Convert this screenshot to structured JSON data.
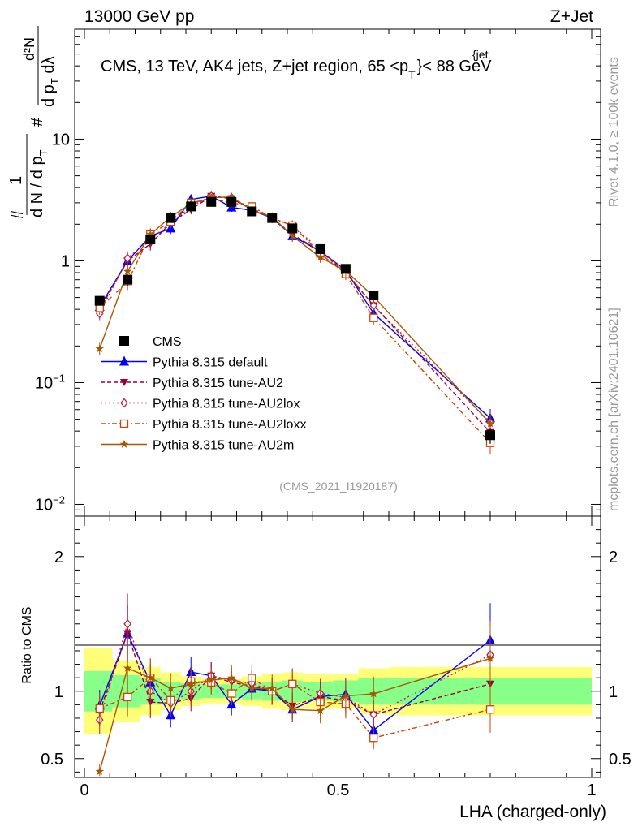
{
  "header": {
    "left": "13000 GeV pp",
    "right": "Z+Jet"
  },
  "chart_data": {
    "type": "line",
    "title": "CMS, 13 TeV, AK4 jets, Z+jet region, 65 <p_T^{jet}< 88 GeV",
    "title_parts": {
      "main": "CMS, 13 TeV, AK4 jets, Z+jet region, 65 <p",
      "sub": "T",
      "sup": "{jet",
      "tail": "}< 88 GeV"
    },
    "xlabel": "LHA (charged-only)",
    "ylabel_parts": {
      "n1": "#",
      "one": "1",
      "den": "d N / d p",
      "den_sub": "T",
      "n2": "#",
      "num2": "d²N",
      "den2": "d p",
      "den2_sub": "T",
      "den2_tail": " dλ"
    },
    "ratio_ylabel": "Ratio to CMS",
    "xlim": [
      0,
      1
    ],
    "ylim": [
      0.008,
      80
    ],
    "ratio_ylim": [
      0.36,
      2.3
    ],
    "yscale": "log",
    "analysis_id": "(CMS_2021_I1920187)",
    "side_label_rivet": "Rivet 4.1.0, ≥ 100k events",
    "side_label_mcplots": "mcplots.cern.ch [arXiv:2401.10621]",
    "x_ticks": [
      {
        "v": 0,
        "label": "0"
      },
      {
        "v": 0.5,
        "label": "0.5"
      },
      {
        "v": 1,
        "label": "1"
      }
    ],
    "y_ticks": [
      {
        "v": 0.01,
        "base": "10",
        "exp": "−2"
      },
      {
        "v": 0.1,
        "base": "10",
        "exp": "−1"
      },
      {
        "v": 1,
        "base": "1",
        "exp": ""
      },
      {
        "v": 10,
        "base": "10",
        "exp": ""
      }
    ],
    "ratio_ticks": [
      {
        "v": 0.5,
        "label": "0.5"
      },
      {
        "v": 1,
        "label": "1"
      },
      {
        "v": 2,
        "label": "2"
      }
    ],
    "x": [
      0.03,
      0.085,
      0.13,
      0.17,
      0.21,
      0.25,
      0.29,
      0.33,
      0.37,
      0.41,
      0.465,
      0.515,
      0.57,
      0.8
    ],
    "bin_edges": [
      0,
      0.055,
      0.11,
      0.15,
      0.19,
      0.23,
      0.27,
      0.31,
      0.35,
      0.39,
      0.43,
      0.49,
      0.54,
      0.6,
      1.0
    ],
    "data": {
      "name": "CMS",
      "values": [
        0.47,
        0.7,
        1.5,
        2.25,
        2.8,
        3.05,
        3.05,
        2.55,
        2.25,
        1.85,
        1.25,
        0.86,
        0.52,
        0.037
      ],
      "rel_err": [
        0.08,
        0.1,
        0.08,
        0.06,
        0.05,
        0.04,
        0.04,
        0.04,
        0.05,
        0.06,
        0.06,
        0.07,
        0.08,
        0.15
      ],
      "band_inner": [
        0.15,
        0.12,
        0.1,
        0.07,
        0.06,
        0.05,
        0.05,
        0.06,
        0.07,
        0.08,
        0.07,
        0.08,
        0.1,
        0.1
      ],
      "band_outer": [
        0.32,
        0.23,
        0.18,
        0.14,
        0.11,
        0.09,
        0.09,
        0.11,
        0.13,
        0.14,
        0.13,
        0.13,
        0.17,
        0.18
      ]
    },
    "series": [
      {
        "name": "Pythia 8.315 default",
        "color": "#0000ff",
        "dash": "",
        "marker": "triangle-up",
        "values": [
          0.42,
          1.0,
          1.6,
          1.85,
          3.2,
          3.4,
          2.75,
          2.6,
          2.25,
          1.6,
          1.2,
          0.84,
          0.37,
          0.051
        ]
      },
      {
        "name": "Pythia 8.315 tune-AU2",
        "color": "#990033",
        "dash": "5,3",
        "marker": "triangle-down",
        "values": [
          0.4,
          1.0,
          1.38,
          2.05,
          2.65,
          3.4,
          3.25,
          2.65,
          2.25,
          1.65,
          1.2,
          0.8,
          0.43,
          0.039
        ]
      },
      {
        "name": "Pythia 8.315 tune-AU2lox",
        "color": "#bb2244",
        "dash": "2,3",
        "marker": "diamond-open",
        "values": [
          0.37,
          1.05,
          1.5,
          2.05,
          2.8,
          3.4,
          3.3,
          2.7,
          2.25,
          1.95,
          1.23,
          0.82,
          0.43,
          0.047
        ]
      },
      {
        "name": "Pythia 8.315 tune-AU2loxx",
        "color": "#cc4400",
        "dash": "6,3,2,3",
        "marker": "square-open",
        "values": [
          0.41,
          0.67,
          1.65,
          2.1,
          3.0,
          3.25,
          3.0,
          2.8,
          2.25,
          1.95,
          1.15,
          0.78,
          0.34,
          0.032
        ]
      },
      {
        "name": "Pythia 8.315 tune-AU2m",
        "color": "#aa5500",
        "dash": "",
        "marker": "star",
        "values": [
          0.19,
          0.82,
          1.65,
          2.3,
          2.95,
          3.3,
          3.35,
          2.6,
          2.3,
          1.6,
          1.07,
          0.83,
          0.51,
          0.046
        ]
      }
    ]
  }
}
